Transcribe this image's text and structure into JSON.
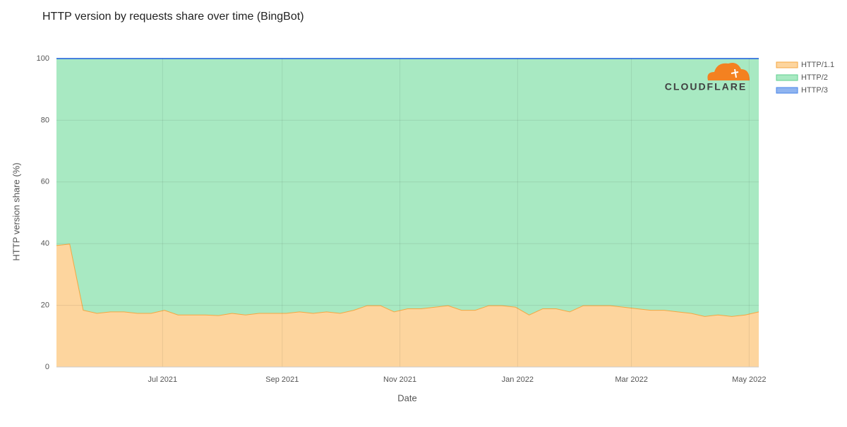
{
  "chart_data": {
    "type": "stacked_area",
    "title": "HTTP version by requests share over time (BingBot)",
    "xlabel": "Date",
    "ylabel": "HTTP version share (%)",
    "watermark": "CLOUDFLARE",
    "x": [
      0,
      7,
      14,
      21,
      28,
      35,
      42,
      49,
      56,
      63,
      70,
      77,
      84,
      91,
      98,
      105,
      112,
      119,
      126,
      133,
      140,
      147,
      154,
      161,
      168,
      175,
      182,
      189,
      196,
      203,
      210,
      217,
      224,
      231,
      238,
      245,
      252,
      259,
      266,
      273,
      280,
      287,
      294,
      301,
      308,
      315,
      322,
      329,
      336,
      343,
      350,
      357,
      364
    ],
    "xlim": [
      0,
      364
    ],
    "xticks": [
      {
        "value": 55,
        "label": "Jul 2021"
      },
      {
        "value": 117,
        "label": "Sep 2021"
      },
      {
        "value": 178,
        "label": "Nov 2021"
      },
      {
        "value": 239,
        "label": "Jan 2022"
      },
      {
        "value": 298,
        "label": "Mar 2022"
      },
      {
        "value": 359,
        "label": "May 2022"
      }
    ],
    "ylim": [
      0,
      100
    ],
    "yticks": [
      0,
      20,
      40,
      60,
      80,
      100
    ],
    "grid": true,
    "series": [
      {
        "name": "HTTP/1.1",
        "color": "#f5a742",
        "fill": "#fdd59e",
        "values": [
          39.5,
          40,
          18.5,
          17.5,
          18,
          18,
          17.5,
          17.5,
          18.5,
          17,
          17,
          17,
          16.8,
          17.5,
          17,
          17.5,
          17.5,
          17.5,
          18,
          17.5,
          18,
          17.5,
          18.5,
          20,
          20,
          18,
          19,
          19,
          19.5,
          20,
          18.5,
          18.5,
          20,
          20,
          19.5,
          17,
          19,
          19,
          18,
          20,
          20,
          20,
          19.5,
          19,
          18.5,
          18.5,
          18,
          17.5,
          16.5,
          17,
          16.5,
          17,
          18
        ]
      },
      {
        "name": "HTTP/2",
        "color": "#5fcf8f",
        "fill": "#a8e9c2",
        "values": [
          60.5,
          60,
          81.5,
          82.5,
          82,
          82,
          82.5,
          82.5,
          81.5,
          83,
          83,
          83,
          83.2,
          82.5,
          83,
          82.5,
          82.5,
          82.5,
          82,
          82.5,
          82,
          82.5,
          81.5,
          80,
          80,
          82,
          81,
          81,
          80.5,
          80,
          81.5,
          81.5,
          80,
          80,
          80.5,
          83,
          81,
          81,
          82,
          80,
          80,
          80,
          80.5,
          81,
          81.5,
          81.5,
          82,
          82.5,
          83.5,
          83,
          83.5,
          83,
          82
        ]
      },
      {
        "name": "HTTP/3",
        "color": "#4a86e8",
        "fill": "#8fb4f0",
        "values": [
          0,
          0,
          0,
          0,
          0,
          0,
          0,
          0,
          0,
          0,
          0,
          0,
          0,
          0,
          0,
          0,
          0,
          0,
          0,
          0,
          0,
          0,
          0,
          0,
          0,
          0,
          0,
          0,
          0,
          0,
          0,
          0,
          0,
          0,
          0,
          0,
          0,
          0,
          0,
          0,
          0,
          0,
          0,
          0,
          0,
          0,
          0,
          0,
          0,
          0,
          0,
          0,
          0
        ]
      }
    ]
  }
}
